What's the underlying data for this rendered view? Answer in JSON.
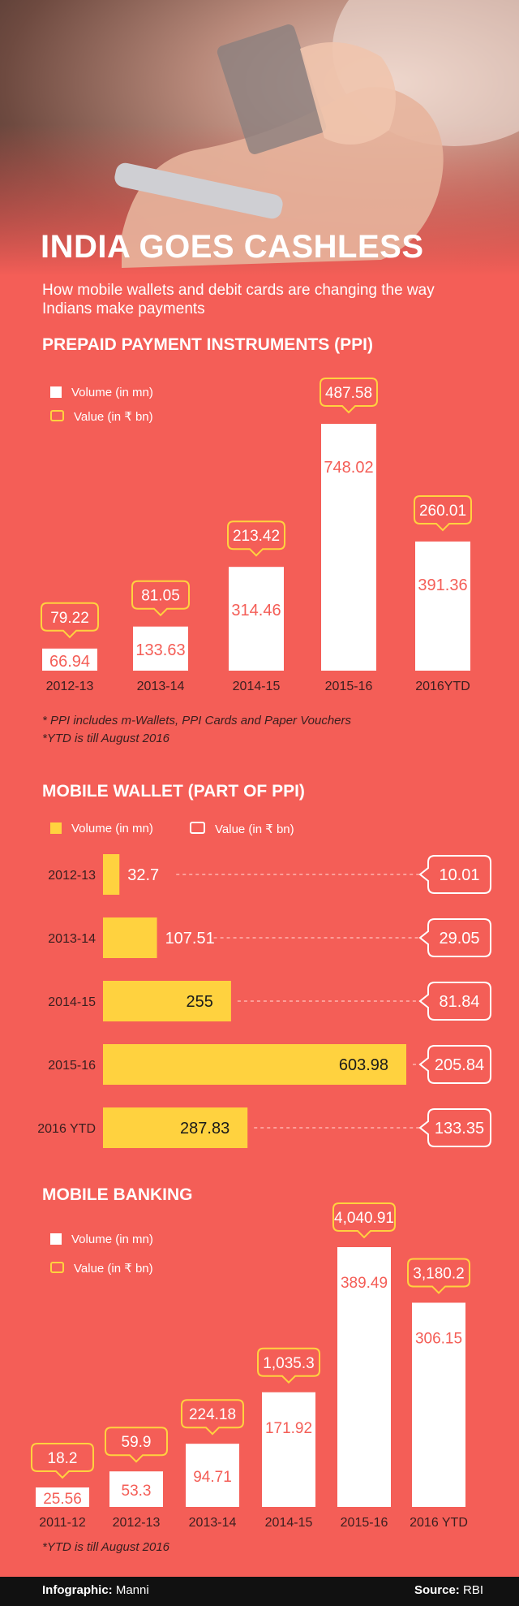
{
  "header": {
    "title": "INDIA GOES CASHLESS",
    "subtitle": "How mobile wallets and debit cards are changing the way Indians make payments"
  },
  "colors": {
    "background": "#f45e57",
    "white": "#ffffff",
    "yellow": "#ffd23f",
    "value_text": "#f45e57",
    "dark": "#3a1f1f"
  },
  "ppi": {
    "title": "PREPAID PAYMENT INSTRUMENTS (PPI)",
    "legend_volume": "Volume (in mn)",
    "legend_value": "Value (in ₹ bn)",
    "note1": "* PPI  includes m-Wallets, PPI Cards and Paper Vouchers",
    "note2": "*YTD is till August 2016"
  },
  "wallet": {
    "title": "MOBILE WALLET (PART OF PPI)",
    "legend_volume": "Volume (in mn)",
    "legend_value": "Value (in ₹ bn)"
  },
  "banking": {
    "title": "MOBILE BANKING",
    "legend_volume": "Volume (in mn)",
    "legend_value": "Value (in ₹ bn)",
    "note": "*YTD is till August 2016"
  },
  "footer": {
    "credit_label": "Infographic:",
    "credit_name": "Manni",
    "source_label": "Source:",
    "source_name": "RBI"
  },
  "chart_data": [
    {
      "type": "bar",
      "title": "PREPAID PAYMENT INSTRUMENTS (PPI)",
      "categories": [
        "2012-13",
        "2013-14",
        "2014-15",
        "2015-16",
        "2016YTD"
      ],
      "series": [
        {
          "name": "Volume (in mn)",
          "values": [
            66.94,
            133.63,
            314.46,
            748.02,
            391.36
          ],
          "labels": [
            "66.94",
            "133.63",
            "314.46",
            "748.02",
            "391.36"
          ]
        },
        {
          "name": "Value (in ₹ bn)",
          "values": [
            79.22,
            81.05,
            213.42,
            487.58,
            260.01
          ],
          "labels": [
            "79.22",
            "81.05",
            "213.42",
            "487.58",
            "260.01"
          ]
        }
      ]
    },
    {
      "type": "bar",
      "title": "MOBILE WALLET (PART OF PPI)",
      "orientation": "horizontal",
      "categories": [
        "2012-13",
        "2013-14",
        "2014-15",
        "2015-16",
        "2016 YTD"
      ],
      "series": [
        {
          "name": "Volume (in mn)",
          "values": [
            32.7,
            107.51,
            255,
            603.98,
            287.83
          ],
          "labels": [
            "32.7",
            "107.51",
            "255",
            "603.98",
            "287.83"
          ]
        },
        {
          "name": "Value (in ₹ bn)",
          "values": [
            10.01,
            29.05,
            81.84,
            205.84,
            133.35
          ],
          "labels": [
            "10.01",
            "29.05",
            "81.84",
            "205.84",
            "133.35"
          ]
        }
      ]
    },
    {
      "type": "bar",
      "title": "MOBILE BANKING",
      "categories": [
        "2011-12",
        "2012-13",
        "2013-14",
        "2014-15",
        "2015-16",
        "2016 YTD"
      ],
      "series": [
        {
          "name": "Volume (in mn)",
          "values": [
            25.56,
            53.3,
            94.71,
            171.92,
            389.49,
            306.15
          ],
          "labels": [
            "25.56",
            "53.3",
            "94.71",
            "171.92",
            "389.49",
            "306.15"
          ]
        },
        {
          "name": "Value (in ₹ bn)",
          "values": [
            18.2,
            59.9,
            224.18,
            1035.3,
            4040.91,
            3180.2
          ],
          "labels": [
            "18.2",
            "59.9",
            "224.18",
            "1,035.3",
            "4,040.91",
            "3,180.2"
          ]
        }
      ]
    }
  ]
}
